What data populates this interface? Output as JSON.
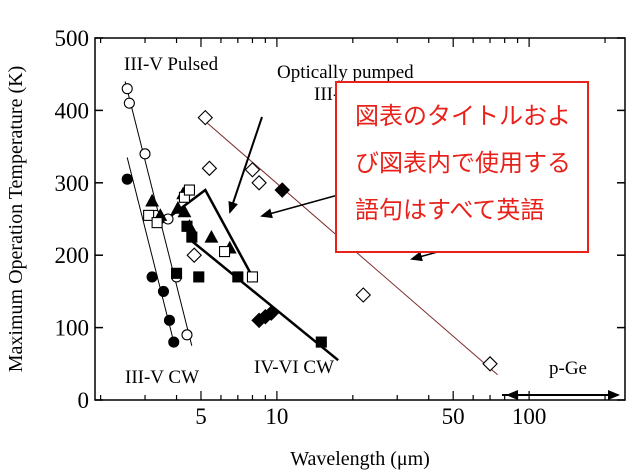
{
  "chart_data": {
    "type": "scatter",
    "xscale": "log",
    "xlim": [
      1.9,
      240
    ],
    "ylim": [
      0,
      500
    ],
    "xlabel": "Wavelength (μm)",
    "ylabel": "Maximum Operation Temperature (K)",
    "x_ticks": [
      5,
      10,
      50,
      100
    ],
    "y_ticks": [
      0,
      100,
      200,
      300,
      400,
      500
    ],
    "grid": false,
    "series": [
      {
        "marker": "open-circle",
        "points": [
          [
            2.55,
            430
          ],
          [
            2.6,
            410
          ],
          [
            3.0,
            340
          ],
          [
            3.3,
            255
          ],
          [
            3.7,
            250
          ],
          [
            4.0,
            170
          ],
          [
            4.4,
            90
          ]
        ]
      },
      {
        "marker": "filled-circle",
        "points": [
          [
            2.55,
            305
          ],
          [
            3.2,
            170
          ],
          [
            3.55,
            150
          ],
          [
            3.75,
            110
          ],
          [
            3.9,
            80
          ]
        ]
      },
      {
        "marker": "filled-triangle",
        "points": [
          [
            3.2,
            275
          ],
          [
            3.45,
            255
          ],
          [
            4.05,
            265
          ],
          [
            4.25,
            285
          ],
          [
            4.3,
            260
          ],
          [
            4.5,
            240
          ],
          [
            5.5,
            225
          ],
          [
            6.5,
            210
          ]
        ]
      },
      {
        "marker": "open-square",
        "points": [
          [
            3.1,
            255
          ],
          [
            3.35,
            245
          ],
          [
            4.3,
            280
          ],
          [
            4.5,
            290
          ],
          [
            6.2,
            205
          ],
          [
            8.0,
            170
          ]
        ]
      },
      {
        "marker": "filled-square",
        "points": [
          [
            4.0,
            175
          ],
          [
            4.4,
            240
          ],
          [
            4.6,
            225
          ],
          [
            4.9,
            170
          ],
          [
            7.0,
            170
          ],
          [
            15.0,
            80
          ]
        ]
      },
      {
        "marker": "open-diamond",
        "points": [
          [
            4.7,
            200
          ],
          [
            5.2,
            390
          ],
          [
            5.4,
            320
          ],
          [
            8.0,
            318
          ],
          [
            8.5,
            300
          ],
          [
            22.0,
            145
          ],
          [
            70.0,
            50
          ]
        ]
      },
      {
        "marker": "filled-diamond",
        "points": [
          [
            8.5,
            110
          ],
          [
            9.0,
            115
          ],
          [
            9.5,
            120
          ],
          [
            10.5,
            290
          ]
        ]
      }
    ],
    "fit_lines": [
      {
        "name": "III-V Pulsed",
        "points": [
          [
            2.5,
            440
          ],
          [
            4.6,
            75
          ]
        ]
      },
      {
        "name": "III-V CW",
        "points": [
          [
            2.55,
            335
          ],
          [
            3.9,
            80
          ]
        ]
      },
      {
        "name": "Optically pumped III-V",
        "points": [
          [
            3.35,
            240
          ],
          [
            5.2,
            290
          ],
          [
            8.0,
            170
          ]
        ]
      },
      {
        "name": "IV-VI CW",
        "points": [
          [
            4.4,
            225
          ],
          [
            17.5,
            55
          ]
        ]
      },
      {
        "name": "p-Ge",
        "points": [
          [
            5.0,
            390
          ],
          [
            75.0,
            35
          ]
        ]
      }
    ],
    "annotations": [
      "III-V Pulsed",
      "Optically pumped",
      "III-V",
      "III-V CW",
      "IV-VI CW",
      "p-Ge"
    ],
    "note": [
      "図表のタイトルおよ",
      "び図表内で使用する",
      "語句はすべて英語"
    ]
  }
}
